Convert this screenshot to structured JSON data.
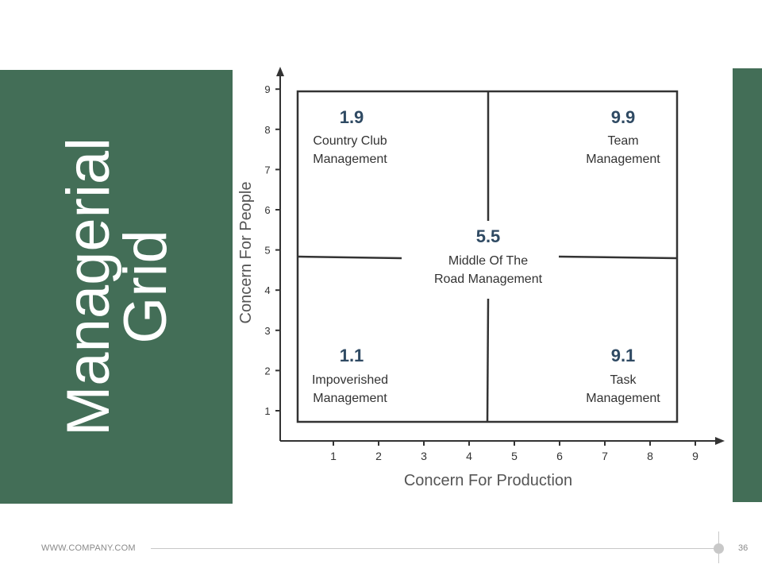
{
  "slide": {
    "title_lines": [
      "Managerial",
      "Grid"
    ],
    "footer_text": "WWW.COMPANY.COM",
    "page_number": "36",
    "colors": {
      "panel": "#436e57",
      "score": "#2f4a63",
      "line": "#333333"
    }
  },
  "chart_data": {
    "type": "diagram",
    "title": "Managerial Grid",
    "xlabel": "Concern For Production",
    "ylabel": "Concern For People",
    "x_ticks": [
      "1",
      "2",
      "3",
      "4",
      "5",
      "6",
      "7",
      "8",
      "9"
    ],
    "y_ticks": [
      "1",
      "2",
      "3",
      "4",
      "5",
      "6",
      "7",
      "8",
      "9"
    ],
    "quadrants": [
      {
        "score": "1.9",
        "lines": [
          "Country Club",
          "Management"
        ]
      },
      {
        "score": "9.9",
        "lines": [
          "Team",
          "Management"
        ]
      },
      {
        "score": "5.5",
        "lines": [
          "Middle Of The",
          "Road Management"
        ]
      },
      {
        "score": "1.1",
        "lines": [
          "Impoverished",
          "Management"
        ]
      },
      {
        "score": "9.1",
        "lines": [
          "Task",
          "Management"
        ]
      }
    ]
  }
}
